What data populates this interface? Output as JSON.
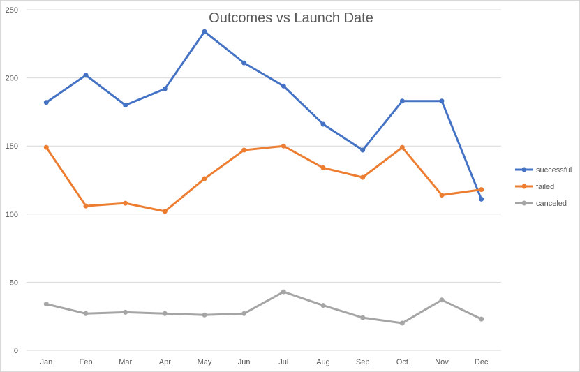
{
  "chart_data": {
    "type": "line",
    "title": "Outcomes vs Launch Date",
    "xlabel": "",
    "ylabel": "",
    "ylim": [
      0,
      250
    ],
    "yticks": [
      0,
      50,
      100,
      150,
      200,
      250
    ],
    "grid": true,
    "legend_position": "right",
    "categories": [
      "Jan",
      "Feb",
      "Mar",
      "Apr",
      "May",
      "Jun",
      "Jul",
      "Aug",
      "Sep",
      "Oct",
      "Nov",
      "Dec"
    ],
    "series": [
      {
        "name": "successful",
        "color": "#4472c4",
        "values": [
          182,
          202,
          180,
          192,
          234,
          211,
          194,
          166,
          147,
          183,
          183,
          111
        ]
      },
      {
        "name": "failed",
        "color": "#ed7d31",
        "values": [
          149,
          106,
          108,
          102,
          126,
          147,
          150,
          134,
          127,
          149,
          114,
          118
        ]
      },
      {
        "name": "canceled",
        "color": "#a5a5a5",
        "values": [
          34,
          27,
          28,
          27,
          26,
          27,
          43,
          33,
          24,
          20,
          37,
          23
        ]
      }
    ]
  }
}
